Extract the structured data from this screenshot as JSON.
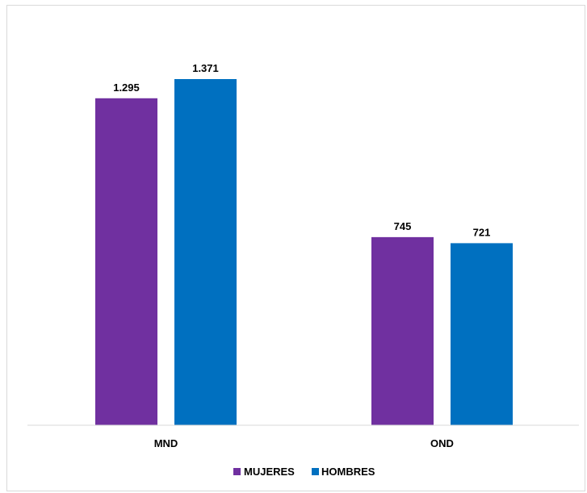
{
  "chart_data": {
    "type": "bar",
    "categories": [
      "MND",
      "OND"
    ],
    "series": [
      {
        "name": "MUJERES",
        "values": [
          1295,
          745
        ],
        "labels": [
          "1.295",
          "745"
        ],
        "color": "#7030A0"
      },
      {
        "name": "HOMBRES",
        "values": [
          1371,
          721
        ],
        "labels": [
          "1.371",
          "721"
        ],
        "color": "#0070C0"
      }
    ],
    "ylim": [
      0,
      1500
    ],
    "grid": false,
    "legend": "bottom",
    "title": "",
    "xlabel": "",
    "ylabel": ""
  }
}
